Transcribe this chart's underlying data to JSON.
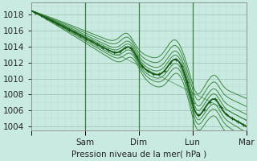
{
  "xlabel": "Pression niveau de la mer( hPa )",
  "ylim": [
    1003.5,
    1019.5
  ],
  "xlim": [
    0,
    96
  ],
  "yticks": [
    1004,
    1006,
    1008,
    1010,
    1012,
    1014,
    1016,
    1018
  ],
  "xtick_positions": [
    0,
    24,
    48,
    72,
    96
  ],
  "xtick_labels": [
    "",
    "Sam",
    "Dim",
    "Lun",
    "Mar"
  ],
  "bg_color": "#c8eae0",
  "grid_color_major": "#a0c8b8",
  "grid_color_minor": "#b8d8cc",
  "line_color_dark": "#1a5c1a",
  "line_color_thin": "#2e7d32",
  "figsize": [
    3.2,
    2.0
  ],
  "dpi": 100
}
